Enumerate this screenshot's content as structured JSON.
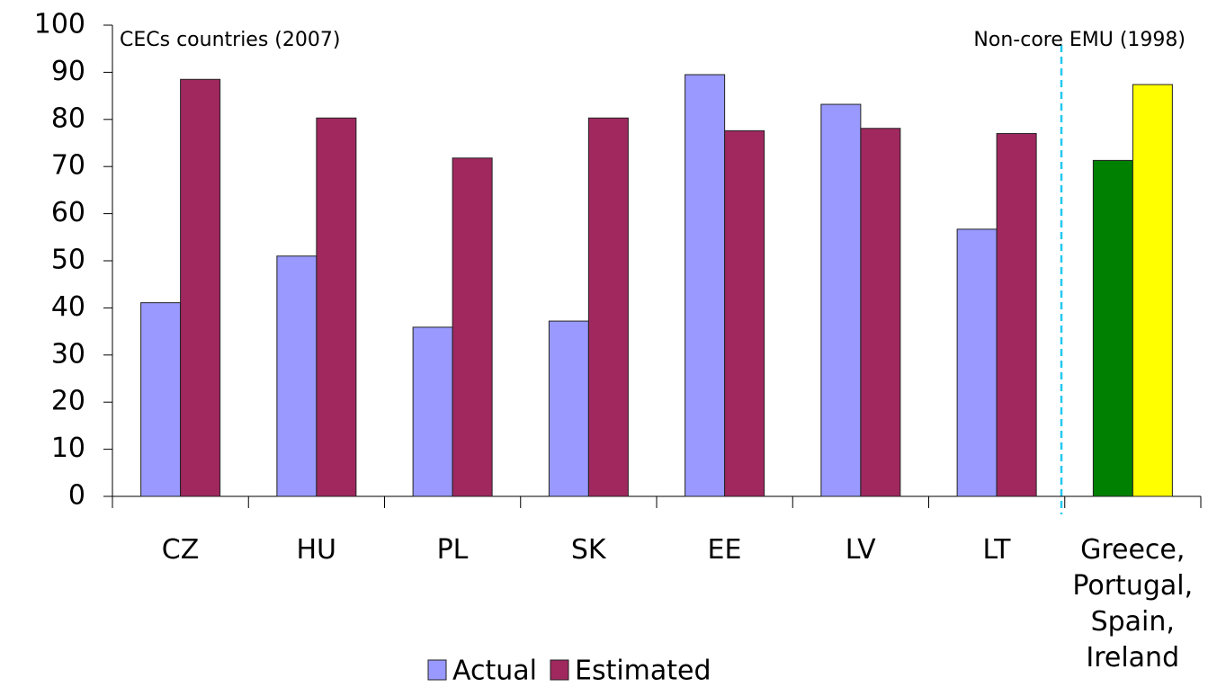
{
  "chart_data": {
    "type": "bar",
    "annotations": [
      "CECs countries (2007)",
      "Non-core EMU (1998)"
    ],
    "categories": [
      "CZ",
      "HU",
      "PL",
      "SK",
      "EE",
      "LV",
      "LT",
      "Greece,\nPortugal,\nSpain,\nIreland"
    ],
    "series": [
      {
        "name": "Actual",
        "color": "#9999ff",
        "colors": [
          "#9999ff",
          "#9999ff",
          "#9999ff",
          "#9999ff",
          "#9999ff",
          "#9999ff",
          "#9999ff",
          "#008000"
        ],
        "values": [
          41.1,
          51.0,
          35.9,
          37.2,
          89.5,
          83.2,
          56.7,
          71.3
        ]
      },
      {
        "name": "Estimated",
        "color": "#a0285f",
        "colors": [
          "#a0285f",
          "#a0285f",
          "#a0285f",
          "#a0285f",
          "#a0285f",
          "#a0285f",
          "#a0285f",
          "#ffff00"
        ],
        "values": [
          88.5,
          80.3,
          71.8,
          80.3,
          77.6,
          78.1,
          77.0,
          87.4
        ]
      }
    ],
    "ylim": [
      0,
      100
    ],
    "yticks": [
      0,
      10,
      20,
      30,
      40,
      50,
      60,
      70,
      80,
      90,
      100
    ],
    "grid": false,
    "legend": "bottom"
  }
}
